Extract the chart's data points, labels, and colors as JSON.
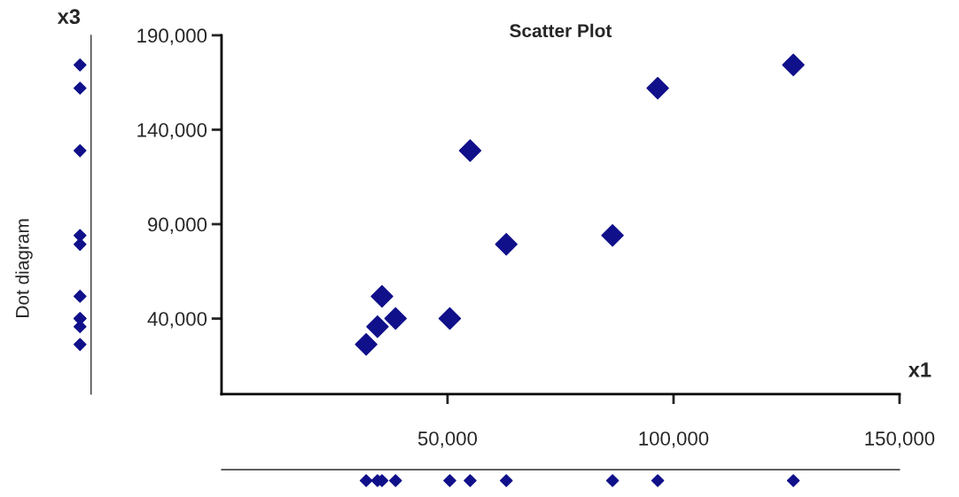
{
  "chart_data": {
    "type": "scatter",
    "title": "Scatter Plot",
    "xlabel": "x1",
    "ylabel": "x3",
    "annotations": [
      "Dot diagram"
    ],
    "x": [
      32000,
      34500,
      35500,
      38500,
      50500,
      55000,
      63000,
      86500,
      96500,
      126500
    ],
    "series": [
      {
        "color": "#10108a",
        "values": [
          26300,
          35700,
          51800,
          40000,
          40000,
          128900,
          79300,
          84000,
          162000,
          174300
        ]
      }
    ],
    "xlim": [
      0,
      150000
    ],
    "xticks": [
      {
        "value": 50000,
        "label": "50,000"
      },
      {
        "value": 100000,
        "label": "100,000"
      },
      {
        "value": 150000,
        "label": "150,000"
      }
    ],
    "ylim": [
      0,
      190000
    ],
    "yticks": [
      {
        "value": 40000,
        "label": "40,000"
      },
      {
        "value": 90000,
        "label": "90,000"
      },
      {
        "value": 140000,
        "label": "140,000"
      },
      {
        "value": 190000,
        "label": "190,000"
      }
    ],
    "marker": "diamond",
    "grid": false
  }
}
